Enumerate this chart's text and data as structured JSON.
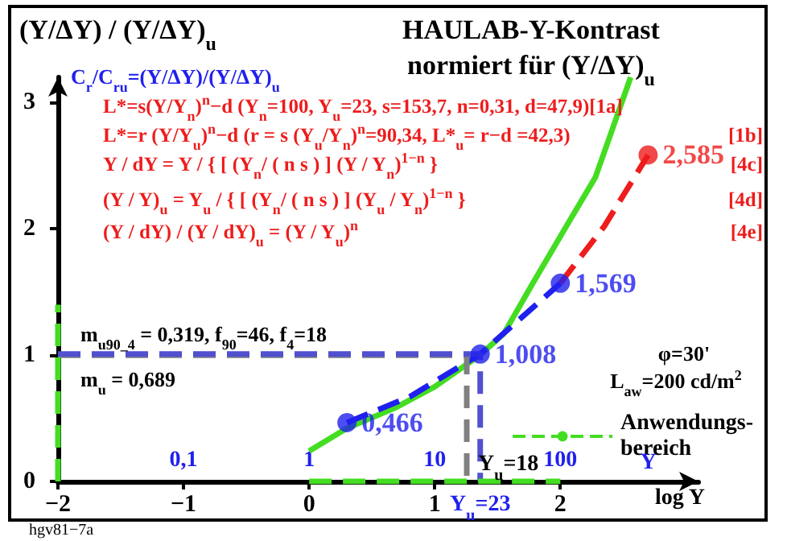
{
  "chart_data": {
    "type": "line",
    "title": "HAULAB-Y-Kontrast",
    "subtitle": "normiert für (Y/ΔY)$_{u}$",
    "ylabel": "(Y/ΔY) / (Y/ΔY)$_{u}$",
    "xlabel": "log Y",
    "x2label": "Y",
    "xlim": [
      -2,
      3.1
    ],
    "xticks": [
      {
        "value": -2,
        "label": "−2"
      },
      {
        "value": -1,
        "label": "−1"
      },
      0,
      1,
      2
    ],
    "x2lim": [
      0.01,
      1259
    ],
    "x2ticks": [
      {
        "value": 0.1,
        "label": "0,1"
      },
      1,
      10,
      100
    ],
    "log": "x2",
    "ylim": [
      0,
      3.2
    ],
    "yticks": [
      0,
      1,
      2,
      3
    ],
    "grid": false,
    "legend": "bottom right",
    "marker": "none",
    "series": [
      {
        "color": "#44dd22",
        "line_style": "solid",
        "x": [
          0,
          0.3,
          0.7,
          1.0,
          1.36,
          1.55,
          1.77,
          2.03,
          2.28,
          2.56
        ],
        "values": [
          0.24,
          0.42,
          0.59,
          0.75,
          1.0,
          1.17,
          1.55,
          1.99,
          2.41,
          3.2
        ]
      },
      {
        "color": "#2020ee",
        "line_style": "dashed",
        "x": [
          0.301,
          0.8,
          1.362,
          2.0
        ],
        "values": [
          0.466,
          0.67,
          1.008,
          1.569
        ]
      },
      {
        "type": "line",
        "color": "#ee1c1c",
        "line_style": "dashed",
        "x": [
          2.0,
          2.35,
          2.699
        ],
        "values": [
          1.569,
          2.02,
          2.585
        ]
      },
      {
        "type": "scatter",
        "color": "#2020ee",
        "marker": "circle",
        "x": [
          0.301,
          1.362,
          2.0
        ],
        "values": [
          0.466,
          1.008,
          1.569
        ],
        "value_labels": [
          "0,466",
          "1,008",
          "1,569"
        ]
      },
      {
        "type": "scatter",
        "color": "#ee1c1c",
        "marker": "circle",
        "x": [
          2.699
        ],
        "values": [
          2.585
        ],
        "value_labels": [
          "2,585"
        ]
      },
      {
        "type": "line",
        "color": "#808080",
        "line_style": "dashed",
        "x": [
          -2,
          1.255,
          1.255
        ],
        "values": [
          1,
          1,
          0
        ]
      },
      {
        "type": "line",
        "color": "#5050d0",
        "line_style": "dashed",
        "x": [
          -2,
          1.362,
          1.362
        ],
        "values": [
          1.008,
          1.008,
          0
        ]
      },
      {
        "type": "line",
        "name": "Anwendungs-bereich",
        "color": "#44dd22",
        "line_style": "dashed",
        "x": [
          0,
          2
        ],
        "values": [
          0,
          0
        ]
      },
      {
        "type": "line",
        "color": "#44dd22",
        "line_style": "dashed",
        "x": [
          -2,
          -2
        ],
        "values": [
          0,
          1.4
        ]
      }
    ],
    "annotations": [
      "C$_{r}$/C$_{ru}$=(Y/ΔY)/(Y/ΔY)$_{u}$",
      "L*=s(Y/Y$_{n}$)$^{n}$−d  (Y$_{n}$=100, Y$_{u}$=23, s=153,7, n=0,31, d=47,9)[1a]",
      "L*=r (Y/Y$_{u}$)$^{n}$−d  (r = s (Y$_{u}$/Y$_{n}$)$^{n}$=90,34, L*$_{u}$= r−d =42,3) [1b]",
      "Y / dY = Y / { [ (Y$_{n}$/ ( n s ) ] (Y / Y$_{n}$)$^{1−n}$ } [4c]",
      "(Y / Y)$_{u}$ = Y$_{u}$ / { [ (Y$_{n}$/ ( n s ) ] (Y$_{u}$ / Y$_{n}$)$^{1−n}$ } [4d]",
      "(Y / dY) / (Y / dY)$_{u}$ = (Y / Y$_{u}$)$^{n}$ [4e]",
      "m$_{u90_4}$ = 0,319, f$_{90}$=46, f$_{4}$=18",
      "m$_{u}$ = 0,689",
      "φ=30'",
      "L$_{aw}$=200 cd/m$^{2}$",
      {
        "text": "Y$_{u}$=18",
        "x": 1.255,
        "y": 0
      },
      {
        "text": "Y$_{u}$=23",
        "x": 1.362,
        "y": 0
      },
      "hgv81−7a"
    ]
  }
}
